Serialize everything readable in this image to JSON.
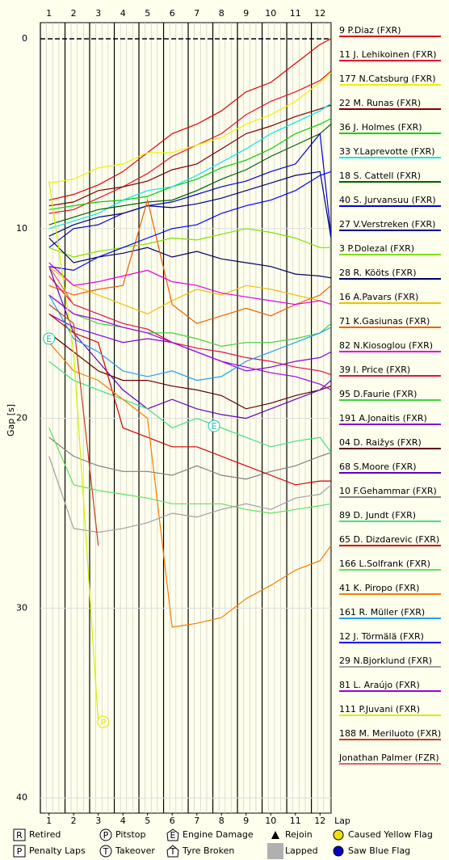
{
  "chart_data": {
    "type": "line",
    "x_label": "Lap",
    "y_label": "Gap [s]",
    "x": [
      1,
      2,
      3,
      4,
      5,
      6,
      7,
      8,
      9,
      10,
      11,
      12,
      12.45
    ],
    "xlim": [
      0.65,
      12.45
    ],
    "xticks": [
      1,
      2,
      3,
      4,
      5,
      6,
      7,
      8,
      9,
      10,
      11,
      12
    ],
    "ylim": [
      -0.85,
      40.8
    ],
    "yticks": [
      0,
      10,
      20,
      30,
      40
    ],
    "grid": true,
    "series": [
      {
        "name": "9 P.Diaz (FXR)",
        "color": "#e00000",
        "values": [
          8.5,
          8.2,
          7.7,
          7.0,
          6.0,
          5.0,
          4.5,
          3.8,
          2.8,
          2.3,
          1.3,
          0.3,
          0
        ]
      },
      {
        "name": "11 J. Lehikoinen (FXR)",
        "color": "#e8102a",
        "values": [
          9.2,
          9.0,
          8.4,
          7.8,
          7.1,
          6.2,
          5.6,
          5.0,
          4.0,
          3.3,
          2.8,
          2.2,
          1.7
        ]
      },
      {
        "name": "177 N.Catsburg (FXR)",
        "color": "#f0f000",
        "values": [
          7.6,
          7.4,
          6.8,
          6.6,
          6.0,
          6.0,
          5.6,
          5.2,
          4.5,
          4.0,
          3.3,
          2.3,
          1.8
        ]
      },
      {
        "name": "22 M. Runas (FXR)",
        "color": "#800000",
        "values": [
          8.8,
          8.6,
          8.0,
          7.8,
          7.5,
          6.9,
          6.6,
          5.8,
          5.0,
          4.6,
          4.1,
          3.7,
          3.5
        ]
      },
      {
        "name": "36 J. Holmes (FXR)",
        "color": "#00d000",
        "values": [
          9.0,
          8.8,
          8.6,
          8.5,
          8.3,
          7.8,
          7.4,
          6.8,
          6.4,
          5.8,
          5.0,
          4.5,
          4.2
        ]
      },
      {
        "name": "33 Y.Laprevotte (FXR)",
        "color": "#00e8e8",
        "values": [
          10.0,
          9.6,
          9.2,
          8.5,
          8.0,
          7.8,
          7.2,
          6.5,
          5.8,
          5.0,
          4.4,
          3.8,
          3.4
        ]
      },
      {
        "name": "18 S. Cattell (FXR)",
        "color": "#006000",
        "values": [
          9.8,
          9.4,
          9.0,
          8.8,
          8.6,
          8.5,
          8.0,
          7.4,
          6.9,
          6.2,
          5.6,
          5.0,
          4.5
        ]
      },
      {
        "name": "40 S. Jurvansuu (FXR)",
        "color": "#0000d0",
        "values": [
          11.0,
          10.0,
          9.8,
          9.2,
          8.8,
          8.6,
          8.2,
          7.8,
          7.5,
          7.0,
          6.6,
          5.0,
          10.4
        ]
      },
      {
        "name": "27 V.Verstreken (FXR)",
        "color": "#000080",
        "values": [
          10.4,
          9.8,
          9.4,
          9.2,
          8.8,
          8.9,
          8.7,
          8.4,
          8.0,
          7.6,
          7.2,
          7.0,
          10.5
        ]
      },
      {
        "name": "3 P.Dolezal (FXR)",
        "color": "#80e000",
        "values": [
          11.0,
          11.5,
          11.2,
          11.0,
          10.8,
          10.5,
          10.6,
          10.3,
          10.0,
          10.2,
          10.5,
          11.0,
          11.0
        ]
      },
      {
        "name": "28 R. Kööts (FXR)",
        "color": "#000060",
        "values": [
          10.5,
          11.8,
          11.5,
          11.3,
          11.0,
          11.5,
          11.2,
          11.6,
          11.8,
          12.0,
          12.4,
          12.5,
          12.6
        ]
      },
      {
        "name": "16 A.Pavars (FXR)",
        "color": "#f0c000",
        "values": [
          12.0,
          13.0,
          13.5,
          14.0,
          14.5,
          13.8,
          13.2,
          13.5,
          13.0,
          13.2,
          13.5,
          13.8,
          14.0
        ]
      },
      {
        "name": "71 K.Gasiunas (FXR)",
        "color": "#f06000",
        "values": [
          13.0,
          13.5,
          13.2,
          13.0,
          8.5,
          14.0,
          15.0,
          14.6,
          14.2,
          14.6,
          14.0,
          13.5,
          13.0
        ]
      },
      {
        "name": "82 N.Kiosoglou (FXR)",
        "color": "#e000e0",
        "values": [
          11.8,
          13.0,
          12.8,
          12.5,
          12.2,
          12.8,
          13.0,
          13.4,
          13.6,
          13.8,
          14.0,
          13.8,
          14.0
        ]
      },
      {
        "name": "39 I. Price (FXR)",
        "color": "#e0104a",
        "values": [
          12.5,
          14.0,
          14.5,
          15.0,
          15.3,
          16.0,
          16.3,
          16.5,
          16.8,
          17.0,
          17.3,
          17.5,
          17.7
        ]
      },
      {
        "name": "95 D.Faurie (FXR)",
        "color": "#40d040",
        "values": [
          13.5,
          14.5,
          15.0,
          15.2,
          15.5,
          15.5,
          15.8,
          16.2,
          16.0,
          16.0,
          15.8,
          15.5,
          15.0
        ]
      },
      {
        "name": "191 A.Jonaitis (FXR)",
        "color": "#8000e0",
        "values": [
          14.5,
          15.2,
          15.6,
          16.0,
          15.8,
          16.0,
          16.5,
          17.0,
          17.5,
          17.3,
          17.0,
          16.8,
          16.5
        ]
      },
      {
        "name": "04 D. Raižys (FXR)",
        "color": "#600000",
        "values": [
          15.5,
          16.5,
          17.5,
          18.0,
          18.0,
          18.3,
          18.5,
          18.8,
          19.5,
          19.2,
          18.8,
          18.5,
          18.3
        ]
      },
      {
        "name": "68 S.Moore (FXR)",
        "color": "#6000c0",
        "values": [
          12.0,
          15.5,
          17.0,
          18.5,
          19.5,
          19.0,
          19.5,
          19.8,
          20.0,
          19.5,
          19.0,
          18.5,
          18.0
        ]
      },
      {
        "name": "10 F.Gehammar (FXR)",
        "color": "#808080",
        "values": [
          21.0,
          22.0,
          22.5,
          22.8,
          22.8,
          23.0,
          22.5,
          23.0,
          23.2,
          22.8,
          22.5,
          22.0,
          21.8
        ]
      },
      {
        "name": "89 D. Jundt (FXR)",
        "color": "#40e080",
        "values": [
          17.0,
          18.0,
          18.5,
          19.0,
          19.5,
          20.5,
          20.0,
          20.5,
          21.0,
          21.5,
          21.2,
          21.0,
          21.8
        ]
      },
      {
        "name": "65 D. Dizdarevic (FXR)",
        "color": "#d00000",
        "values": [
          14.5,
          15.5,
          16.0,
          20.5,
          21.0,
          21.5,
          21.5,
          22.0,
          22.5,
          23.0,
          23.5,
          23.3,
          23.3
        ]
      },
      {
        "name": "166 L.Solfrank (FXR)",
        "color": "#60e060",
        "values": [
          20.5,
          23.5,
          23.8,
          24.0,
          24.2,
          24.5,
          24.5,
          24.5,
          24.8,
          25.0,
          24.8,
          24.6,
          24.5
        ]
      },
      {
        "name": "41 K. Piropo (FXR)",
        "color": "#f08000",
        "values": [
          16.0,
          17.5,
          18.0,
          19.0,
          20.0,
          31.0,
          30.8,
          30.5,
          29.5,
          28.8,
          28.0,
          27.5,
          26.7
        ]
      },
      {
        "name": "161 R. Müller (FXR)",
        "color": "#20a0f0",
        "values": [
          13.5,
          15.8,
          16.5,
          17.5,
          17.8,
          17.5,
          18.0,
          17.8,
          17.0,
          16.5,
          16.0,
          15.5,
          15.2
        ]
      },
      {
        "name": "12 J. Törmälä (FXR)",
        "color": "#0000ff",
        "values": [
          12.0,
          12.2,
          11.5,
          11.0,
          10.5,
          10.0,
          9.8,
          9.2,
          8.8,
          8.5,
          8.0,
          7.2,
          7.0
        ]
      },
      {
        "name": "29 N.Bjorklund (FXR)",
        "color": "#a0a0a0",
        "values": [
          22.0,
          25.8,
          26.0,
          25.8,
          25.5,
          25.0,
          25.2,
          24.8,
          24.5,
          24.8,
          24.2,
          24.0,
          23.5
        ]
      },
      {
        "name": "81 L. Araújo (FXR)",
        "color": "#a000e0",
        "values": [
          13.5,
          14.5,
          14.8,
          15.2,
          15.5,
          16.0,
          16.5,
          17.0,
          17.3,
          17.6,
          17.8,
          18.2,
          18.5
        ]
      },
      {
        "name": "111 P.Juvani (FXR)",
        "color": "#d0f000",
        "values": [
          7.5,
          16.5,
          36.0,
          null,
          null,
          null,
          null,
          null,
          null,
          null,
          null,
          null,
          null
        ]
      },
      {
        "name": "188 M. Meriluoto (FXR)",
        "color": "#c04020",
        "values": [
          14.0,
          15.0,
          26.7,
          null,
          null,
          null,
          null,
          null,
          null,
          null,
          null,
          null,
          null
        ]
      },
      {
        "name": "Jonathan Palmer (FZR)",
        "color": "#e06060",
        "values": [
          12.0,
          14.0,
          null,
          null,
          null,
          null,
          null,
          null,
          null,
          null,
          null,
          null,
          null
        ]
      }
    ],
    "markers": [
      {
        "symbol": "E",
        "x": 1,
        "y": 15.8,
        "color": "#20c0c0"
      },
      {
        "symbol": "E",
        "x": 7.7,
        "y": 20.4,
        "color": "#20c0c0"
      },
      {
        "symbol": "P",
        "x": 3.2,
        "y": 36.0,
        "color": "#e0e000"
      }
    ],
    "legend_items": [
      {
        "shape": "box",
        "symbol": "R",
        "label": "Retired",
        "color": "#000000"
      },
      {
        "shape": "circle",
        "symbol": "P",
        "label": "Pitstop",
        "color": "#000000"
      },
      {
        "shape": "pentagon",
        "symbol": "E",
        "label": "Engine Damage",
        "color": "#000000"
      },
      {
        "shape": "triangle",
        "label": "Rejoin",
        "color": "#000000"
      },
      {
        "shape": "dot",
        "label": "Caused Yellow Flag",
        "color": "#f0e000"
      },
      {
        "shape": "box",
        "symbol": "P",
        "label": "Penalty Laps",
        "color": "#000000"
      },
      {
        "shape": "circle",
        "symbol": "T",
        "label": "Takeover",
        "color": "#000000"
      },
      {
        "shape": "pentagon-up",
        "symbol": "T",
        "label": "Tyre Broken",
        "color": "#000000"
      },
      {
        "shape": "square",
        "label": "Lapped",
        "color": "#b0b0b0"
      },
      {
        "shape": "dot",
        "label": "Saw Blue Flag",
        "color": "#0000c0"
      }
    ]
  }
}
